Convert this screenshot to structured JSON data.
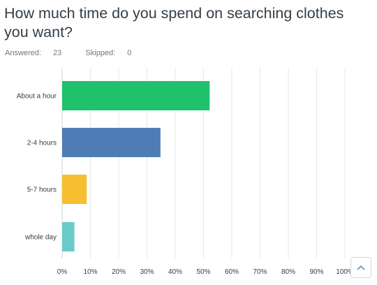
{
  "question": {
    "title": "How much time do you spend on searching clothes you want?"
  },
  "meta": {
    "answered_label": "Answered:",
    "answered_value": "23",
    "skipped_label": "Skipped:",
    "skipped_value": "0"
  },
  "scroll_top_icon": "chevron-up-icon",
  "chart_data": {
    "type": "bar",
    "orientation": "horizontal",
    "categories": [
      "About a hour",
      "2-4 hours",
      "5-7 hours",
      "whole day"
    ],
    "values": [
      52.17,
      34.78,
      8.7,
      4.35
    ],
    "colors": [
      "#1fc16b",
      "#507cb6",
      "#f7be2f",
      "#6bcbcb"
    ],
    "tick_labels": [
      "0%",
      "10%",
      "20%",
      "30%",
      "40%",
      "50%",
      "60%",
      "70%",
      "80%",
      "90%",
      "100%"
    ],
    "xlim": [
      0,
      100
    ],
    "grid": true,
    "title": "",
    "xlabel": "",
    "ylabel": ""
  }
}
